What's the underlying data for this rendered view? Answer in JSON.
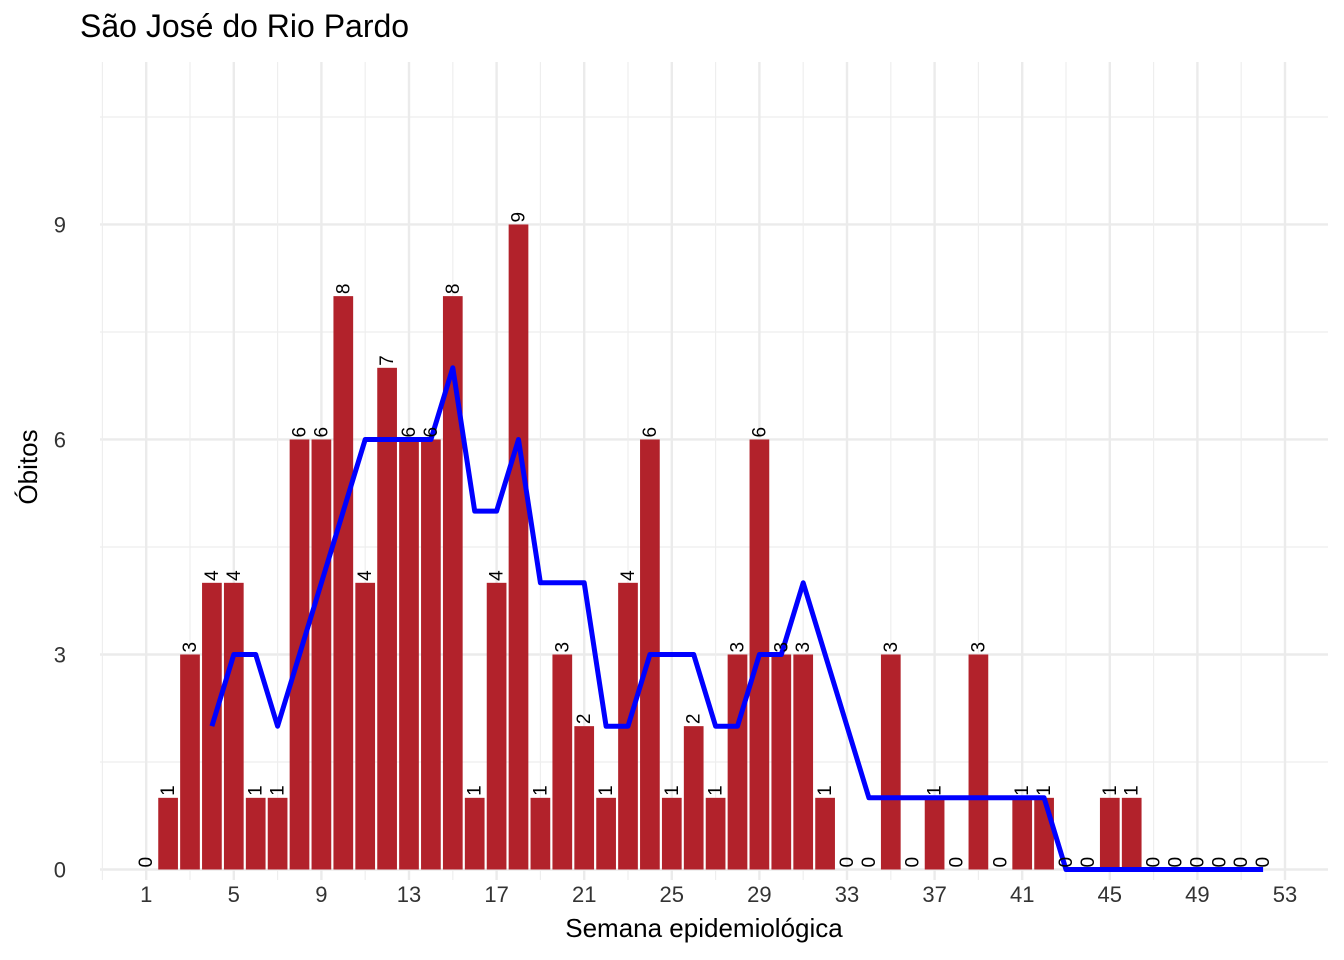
{
  "chart_data": {
    "type": "bar",
    "title": "São José do Rio Pardo",
    "xlabel": "Semana epidemiológica",
    "ylabel": "Óbitos",
    "x_ticks": [
      1,
      5,
      9,
      13,
      17,
      21,
      25,
      29,
      33,
      37,
      41,
      45,
      49,
      53
    ],
    "y_ticks": [
      0,
      3,
      6,
      9
    ],
    "xlim": [
      0,
      54
    ],
    "ylim": [
      0,
      10.5
    ],
    "grid": true,
    "bar_color": "#B2222B",
    "line_color": "#0000FF",
    "weeks": [
      1,
      2,
      3,
      4,
      5,
      6,
      7,
      8,
      9,
      10,
      11,
      12,
      13,
      14,
      15,
      16,
      17,
      18,
      19,
      20,
      21,
      22,
      23,
      24,
      25,
      26,
      27,
      28,
      29,
      30,
      31,
      32,
      33,
      34,
      35,
      36,
      37,
      38,
      39,
      40,
      41,
      42,
      43,
      44,
      45,
      46,
      47,
      48,
      49,
      50,
      51,
      52
    ],
    "values": [
      0,
      1,
      3,
      4,
      4,
      1,
      1,
      6,
      6,
      8,
      4,
      7,
      6,
      6,
      8,
      1,
      4,
      9,
      1,
      3,
      2,
      1,
      4,
      6,
      1,
      2,
      1,
      3,
      6,
      3,
      3,
      1,
      0,
      0,
      3,
      0,
      1,
      0,
      3,
      0,
      1,
      1,
      0,
      0,
      1,
      1,
      0,
      0,
      0,
      0,
      0,
      0
    ],
    "moving_average": {
      "x": [
        4,
        5,
        6,
        7,
        8,
        9,
        10,
        11,
        12,
        13,
        14,
        15,
        16,
        17,
        18,
        19,
        20,
        21,
        22,
        23,
        24,
        25,
        26,
        27,
        28,
        29,
        30,
        31,
        32,
        33,
        34,
        35,
        36,
        37,
        38,
        39,
        40,
        41,
        42,
        43,
        44,
        45,
        46,
        47,
        48,
        49,
        50,
        51,
        52
      ],
      "y": [
        2,
        3,
        3,
        2,
        3,
        4,
        5,
        6,
        6,
        6,
        6,
        7,
        5,
        5,
        6,
        4,
        4,
        4,
        2,
        2,
        3,
        3,
        3,
        2,
        2,
        3,
        3,
        4,
        3,
        2,
        1,
        1,
        1,
        1,
        1,
        1,
        1,
        1,
        1,
        0,
        0,
        0,
        0,
        0,
        0,
        0,
        0,
        0,
        0
      ]
    }
  }
}
